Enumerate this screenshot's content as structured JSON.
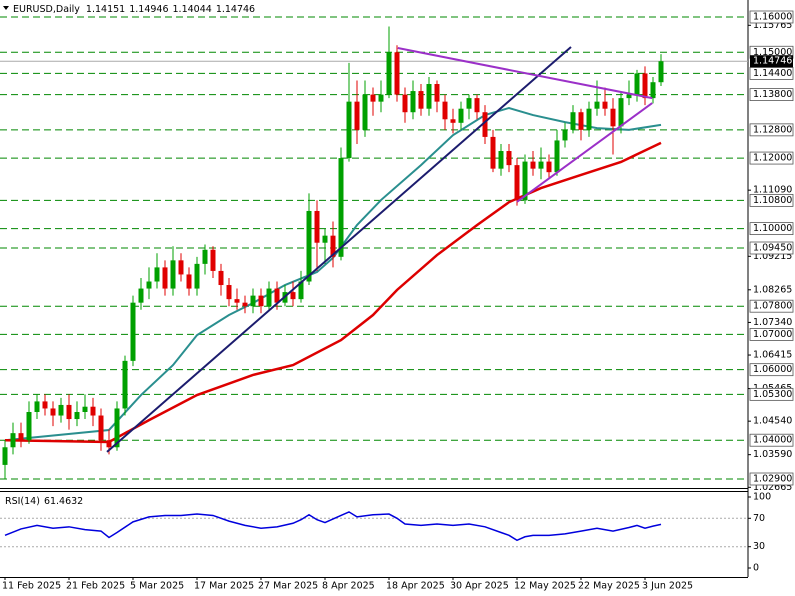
{
  "chart_data": [
    {
      "type": "candlestick",
      "title": "EURUSD,Daily",
      "categories": [
        "11 Feb 2025",
        null,
        null,
        null,
        null,
        null,
        null,
        null,
        "21 Feb 2025",
        null,
        null,
        null,
        null,
        null,
        null,
        null,
        "5 Mar 2025",
        null,
        null,
        null,
        null,
        null,
        null,
        null,
        "17 Mar 2025",
        null,
        null,
        null,
        null,
        null,
        null,
        null,
        "27 Mar 2025",
        null,
        null,
        null,
        null,
        null,
        null,
        null,
        "8 Apr 2025",
        null,
        null,
        null,
        null,
        null,
        null,
        null,
        "18 Apr 2025",
        null,
        null,
        null,
        null,
        null,
        null,
        null,
        "30 Apr 2025",
        null,
        null,
        null,
        null,
        null,
        null,
        null,
        "12 May 2025",
        null,
        null,
        null,
        null,
        null,
        null,
        null,
        "22 May 2025",
        null,
        null,
        null,
        null,
        null,
        null,
        null,
        "3 Jun 2025",
        null,
        null
      ],
      "open": [
        1.033,
        1.038,
        1.042,
        1.04,
        1.048,
        1.051,
        1.049,
        1.047,
        1.05,
        1.046,
        1.048,
        1.0495,
        1.047,
        1.04,
        1.038,
        1.049,
        1.0625,
        1.079,
        1.083,
        1.085,
        1.089,
        1.083,
        1.091,
        1.087,
        1.083,
        1.09,
        1.094,
        1.088,
        1.084,
        1.08,
        1.079,
        1.078,
        1.081,
        1.078,
        1.083,
        1.079,
        1.082,
        1.08,
        1.085,
        1.105,
        1.096,
        1.098,
        1.092,
        1.12,
        1.136,
        1.128,
        1.138,
        1.136,
        1.138,
        1.15,
        1.138,
        1.133,
        1.139,
        1.134,
        1.141,
        1.136,
        1.131,
        1.13,
        1.134,
        1.137,
        1.133,
        1.126,
        1.117,
        1.122,
        1.118,
        1.108,
        1.119,
        1.117,
        1.119,
        1.116,
        1.125,
        1.128,
        1.133,
        1.128,
        1.134,
        1.136,
        1.134,
        1.129,
        1.137,
        1.138,
        1.144,
        1.137,
        1.14151
      ],
      "high": [
        1.04,
        1.045,
        1.045,
        1.051,
        1.053,
        1.053,
        1.051,
        1.052,
        1.053,
        1.051,
        1.053,
        1.052,
        1.049,
        1.043,
        1.051,
        1.064,
        1.081,
        1.086,
        1.089,
        1.093,
        1.091,
        1.095,
        1.093,
        1.089,
        1.092,
        1.0955,
        1.095,
        1.09,
        1.086,
        1.083,
        1.081,
        1.083,
        1.083,
        1.085,
        1.085,
        1.084,
        1.085,
        1.088,
        1.11,
        1.108,
        1.1,
        1.102,
        1.123,
        1.147,
        1.142,
        1.142,
        1.14,
        1.142,
        1.1573,
        1.152,
        1.14,
        1.142,
        1.141,
        1.143,
        1.142,
        1.138,
        1.134,
        1.136,
        1.138,
        1.138,
        1.135,
        1.128,
        1.124,
        1.124,
        1.12,
        1.121,
        1.122,
        1.123,
        1.121,
        1.128,
        1.13,
        1.135,
        1.134,
        1.136,
        1.142,
        1.14,
        1.137,
        1.139,
        1.142,
        1.145,
        1.146,
        1.143,
        1.14946
      ],
      "low": [
        1.029,
        1.036,
        1.038,
        1.039,
        1.046,
        1.047,
        1.044,
        1.045,
        1.043,
        1.044,
        1.046,
        1.044,
        1.037,
        1.036,
        1.037,
        1.047,
        1.061,
        1.077,
        1.08,
        1.083,
        1.081,
        1.081,
        1.085,
        1.081,
        1.081,
        1.087,
        1.086,
        1.081,
        1.078,
        1.077,
        1.076,
        1.076,
        1.076,
        1.077,
        1.077,
        1.078,
        1.078,
        1.079,
        1.084,
        1.088,
        1.09,
        1.089,
        1.091,
        1.119,
        1.124,
        1.126,
        1.132,
        1.133,
        1.137,
        1.136,
        1.13,
        1.131,
        1.132,
        1.132,
        1.133,
        1.128,
        1.127,
        1.128,
        1.131,
        1.131,
        1.124,
        1.116,
        1.115,
        1.116,
        1.1065,
        1.107,
        1.115,
        1.114,
        1.114,
        1.115,
        1.123,
        1.127,
        1.125,
        1.126,
        1.132,
        1.132,
        1.121,
        1.127,
        1.135,
        1.136,
        1.135,
        1.1355,
        1.14044
      ],
      "close": [
        1.038,
        1.042,
        1.04,
        1.048,
        1.051,
        1.049,
        1.047,
        1.05,
        1.046,
        1.048,
        1.0495,
        1.047,
        1.04,
        1.038,
        1.049,
        1.0625,
        1.079,
        1.083,
        1.085,
        1.089,
        1.083,
        1.091,
        1.087,
        1.083,
        1.09,
        1.094,
        1.088,
        1.084,
        1.08,
        1.079,
        1.078,
        1.081,
        1.078,
        1.083,
        1.079,
        1.082,
        1.08,
        1.085,
        1.105,
        1.096,
        1.098,
        1.092,
        1.12,
        1.136,
        1.128,
        1.138,
        1.136,
        1.138,
        1.15,
        1.138,
        1.133,
        1.139,
        1.134,
        1.141,
        1.136,
        1.131,
        1.13,
        1.134,
        1.137,
        1.133,
        1.126,
        1.117,
        1.122,
        1.118,
        1.108,
        1.119,
        1.117,
        1.119,
        1.116,
        1.125,
        1.128,
        1.133,
        1.128,
        1.134,
        1.136,
        1.134,
        1.129,
        1.137,
        1.138,
        1.144,
        1.137,
        1.14151,
        1.14746
      ],
      "up_color": "#00a000",
      "down_color": "#e00000",
      "series": [
        {
          "color": "#2a8f8f",
          "x": [
            0,
            13,
            17,
            21,
            24,
            28,
            31,
            35,
            39,
            41,
            44,
            47,
            52,
            56,
            60,
            63,
            66,
            70,
            74,
            78,
            82
          ],
          "values": [
            1.04,
            1.0429,
            1.0528,
            1.0613,
            1.0698,
            1.0755,
            1.0789,
            1.084,
            1.0877,
            1.0917,
            1.101,
            1.1081,
            1.118,
            1.1265,
            1.1322,
            1.1342,
            1.1322,
            1.1302,
            1.1285,
            1.128,
            1.1294
          ]
        },
        {
          "color": "#dd0000",
          "x": [
            0,
            13,
            18,
            24,
            31,
            36,
            42,
            46,
            49,
            54,
            59,
            63,
            67,
            72,
            77,
            82
          ],
          "values": [
            1.04,
            1.0395,
            1.0457,
            1.0528,
            1.0585,
            1.0613,
            1.0684,
            1.0755,
            1.0826,
            1.0925,
            1.101,
            1.1075,
            1.1115,
            1.1152,
            1.1189,
            1.1243
          ]
        }
      ],
      "trendlines": [
        {
          "color": "#1c1c6e",
          "x": [
            12.75,
            70.75
          ],
          "values": [
            1.0367,
            1.1515
          ]
        },
        {
          "color": "#9b30c8",
          "x": [
            49.1,
            80.9
          ],
          "values": [
            1.1512,
            1.137
          ]
        },
        {
          "color": "#9b30c8",
          "x": [
            64,
            80.9
          ],
          "values": [
            1.1076,
            1.1356
          ]
        }
      ],
      "levels": [
        {
          "value": 1.16,
          "label": "1.16000"
        },
        {
          "value": 1.15,
          "label": "1.15000"
        },
        {
          "value": 1.144,
          "label": "1.14400"
        },
        {
          "value": 1.138,
          "label": "1.13800"
        },
        {
          "value": 1.128,
          "label": "1.12800"
        },
        {
          "value": 1.12,
          "label": "1.12000"
        },
        {
          "value": 1.108,
          "label": "1.10800"
        },
        {
          "value": 1.1,
          "label": "1.10000"
        },
        {
          "value": 1.0945,
          "label": "1.09450"
        },
        {
          "value": 1.078,
          "label": "1.07800"
        },
        {
          "value": 1.07,
          "label": "1.07000"
        },
        {
          "value": 1.06,
          "label": "1.06000"
        },
        {
          "value": 1.053,
          "label": "1.05300"
        },
        {
          "value": 1.04,
          "label": "1.04000"
        },
        {
          "value": 1.029,
          "label": "1.02900"
        }
      ],
      "level_color": "#008800",
      "ylim": [
        1.02645,
        1.16482
      ],
      "yticks": [
        1.15765,
        {
          "value": 1.1109,
          "label": "1.11090"
        },
        1.09215,
        1.08265,
        {
          "value": 1.0734,
          "label": "1.07340"
        },
        1.06415,
        1.05465,
        {
          "value": 1.0454,
          "label": "1.04540"
        },
        {
          "value": 1.0359,
          "label": "1.03590"
        },
        1.02665
      ]
    },
    {
      "type": "line",
      "title": "RSI(14)",
      "color": "#0000dd",
      "x": [
        0,
        2,
        4,
        6,
        8,
        10,
        12,
        13,
        14,
        16,
        18,
        20,
        22,
        24,
        26,
        28,
        30,
        32,
        34,
        36,
        37,
        38,
        39,
        40,
        42,
        43,
        44,
        46,
        48,
        49,
        50,
        52,
        54,
        56,
        58,
        60,
        62,
        63,
        64,
        65,
        66,
        68,
        70,
        72,
        74,
        76,
        78,
        79,
        80,
        81,
        82
      ],
      "values": [
        46,
        55,
        60,
        56,
        58,
        54,
        52,
        43,
        50,
        65,
        72,
        74,
        74,
        76,
        74,
        66,
        60,
        56,
        58,
        63,
        68,
        75,
        68,
        64,
        74,
        79,
        72,
        75,
        76,
        70,
        62,
        60,
        62,
        60,
        62,
        58,
        50,
        46,
        39,
        44,
        46,
        46,
        48,
        52,
        56,
        52,
        57,
        60,
        56,
        59,
        61.4632
      ],
      "ylim": [
        0,
        100
      ],
      "yticks": [
        100,
        70,
        30,
        0
      ]
    }
  ]
}
